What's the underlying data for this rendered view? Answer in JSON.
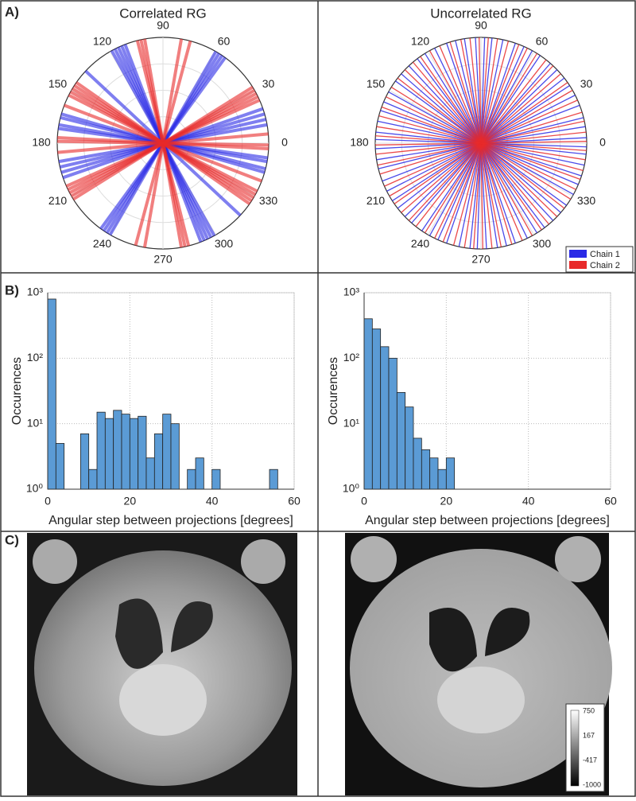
{
  "panel_labels": [
    "A)",
    "B)",
    "C)"
  ],
  "chart_data": [
    {
      "type": "polar",
      "title": "Correlated RG",
      "thetaticks": [
        0,
        30,
        60,
        90,
        120,
        150,
        180,
        210,
        240,
        270,
        300,
        330
      ],
      "series": [
        {
          "name": "Chain 1",
          "color": "#2a2ae6",
          "values": [
            10,
            13,
            16,
            19,
            54,
            56,
            58,
            60,
            111,
            113,
            115,
            117,
            119,
            164,
            166,
            170,
            172,
            137
          ]
        },
        {
          "name": "Chain 2",
          "color": "#e82a2a",
          "values": [
            5,
            24,
            26,
            28,
            30,
            32,
            75,
            80,
            100,
            102,
            104,
            145,
            147,
            149,
            151,
            153,
            159,
            177,
            179
          ]
        }
      ]
    },
    {
      "type": "polar",
      "title": "Uncorrelated RG",
      "thetaticks": [
        0,
        30,
        60,
        90,
        120,
        150,
        180,
        210,
        240,
        270,
        300,
        330
      ],
      "legend": "lower right",
      "series": [
        {
          "name": "Chain 1",
          "color": "#2a2ae6",
          "values": [
            3,
            9,
            14,
            21,
            27,
            33,
            38,
            44,
            49,
            56,
            61,
            66,
            71,
            78,
            84,
            88,
            93,
            99,
            104,
            109,
            116,
            122,
            127,
            133,
            139,
            144,
            151,
            157,
            162,
            168,
            174,
            178
          ]
        },
        {
          "name": "Chain 2",
          "color": "#e82a2a",
          "values": [
            1,
            6,
            12,
            17,
            24,
            30,
            35,
            41,
            47,
            52,
            58,
            64,
            69,
            75,
            81,
            86,
            91,
            96,
            101,
            107,
            113,
            119,
            125,
            130,
            136,
            142,
            148,
            154,
            160,
            165,
            171,
            176
          ]
        }
      ]
    },
    {
      "type": "histogram",
      "xlabel": "Angular step between projections [degrees]",
      "ylabel": "Occurences",
      "bins": [
        0,
        2,
        4,
        6,
        8,
        10,
        12,
        14,
        16,
        18,
        20,
        22,
        24,
        26,
        28,
        30,
        32,
        34,
        36,
        38,
        40,
        42,
        44,
        46,
        48,
        50,
        52,
        54,
        56
      ],
      "values": [
        800,
        5,
        0,
        0,
        7,
        2,
        15,
        12,
        16,
        14,
        12,
        13,
        3,
        7,
        14,
        10,
        0,
        2,
        3,
        0,
        2,
        0,
        0,
        0,
        0,
        0,
        0,
        2
      ],
      "color": "#5b9bd5",
      "log_y": true,
      "grid": true,
      "xlim": [
        0,
        60
      ],
      "xticks": [
        0,
        20,
        40,
        60
      ],
      "ylim": [
        1,
        1000
      ],
      "yticks": [
        {
          "value": 1,
          "label": "10⁰"
        },
        {
          "value": 10,
          "label": "10¹"
        },
        {
          "value": 100,
          "label": "10²"
        },
        {
          "value": 1000,
          "label": "10³"
        }
      ]
    },
    {
      "type": "histogram",
      "xlabel": "Angular step between projections [degrees]",
      "ylabel": "Occurences",
      "bins": [
        0,
        2,
        4,
        6,
        8,
        10,
        12,
        14,
        16,
        18,
        20,
        22
      ],
      "values": [
        400,
        280,
        150,
        100,
        30,
        18,
        6,
        4,
        3,
        2,
        3
      ],
      "color": "#5b9bd5",
      "log_y": true,
      "grid": true,
      "xlim": [
        0,
        60
      ],
      "xticks": [
        0,
        20,
        40,
        60
      ],
      "ylim": [
        1,
        1000
      ],
      "yticks": [
        {
          "value": 1,
          "label": "10⁰"
        },
        {
          "value": 10,
          "label": "10¹"
        },
        {
          "value": 100,
          "label": "10²"
        },
        {
          "value": 1000,
          "label": "10³"
        }
      ]
    }
  ],
  "colorbar": {
    "ticks": [
      750,
      167,
      -417,
      -1000
    ]
  }
}
